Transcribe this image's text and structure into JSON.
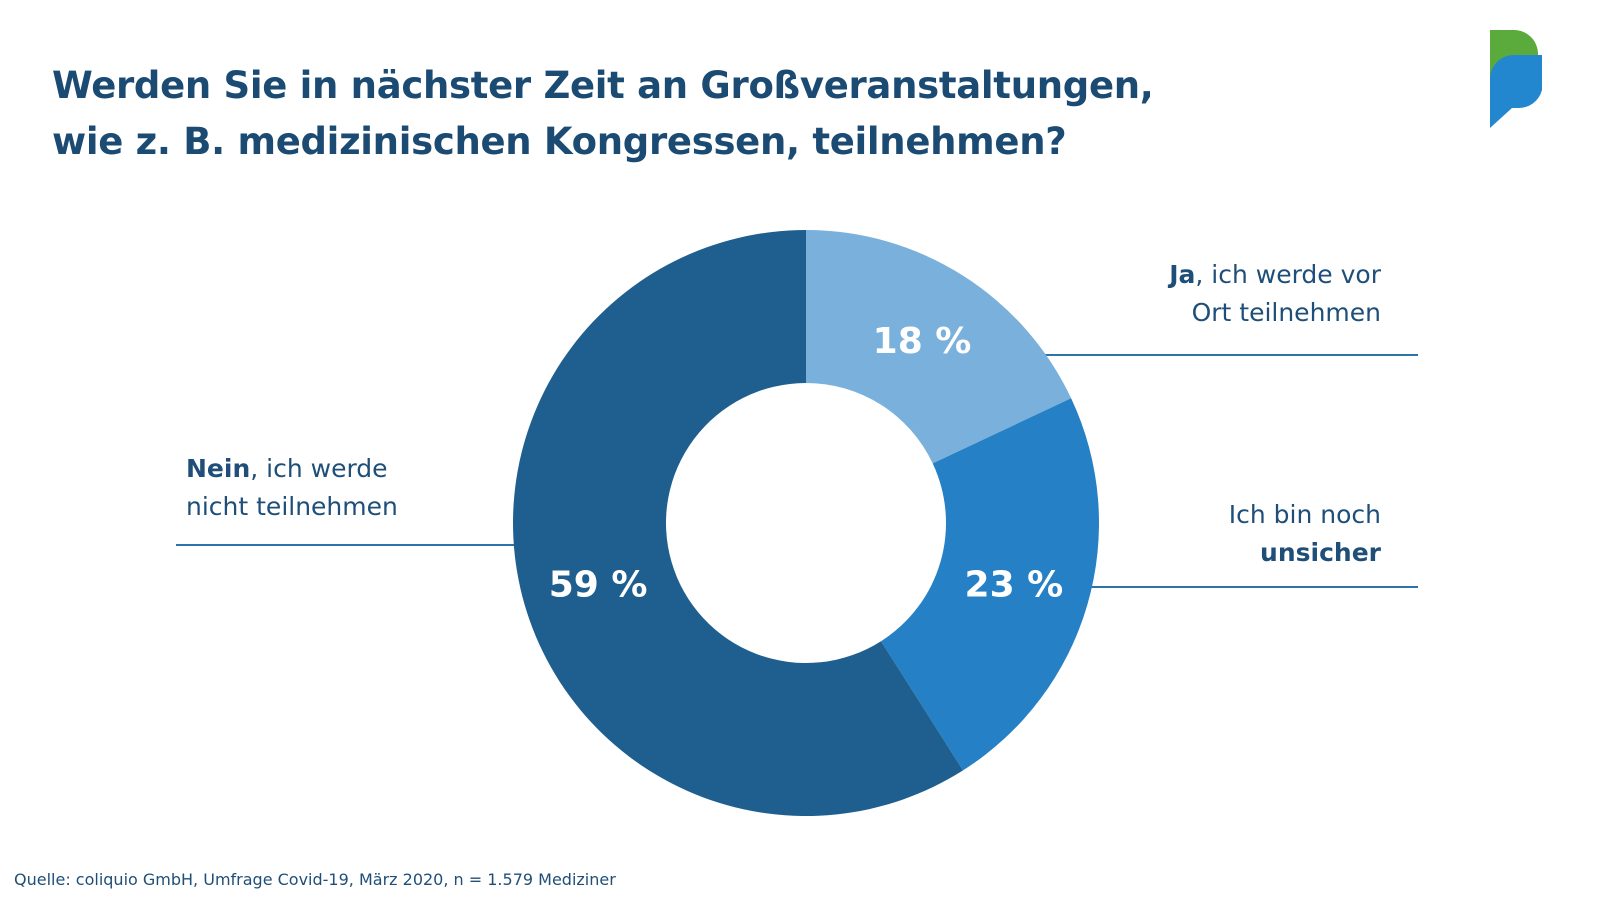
{
  "title_lines": [
    "Werden Sie in nächster Zeit an Großveranstaltungen,",
    "wie z. B. medizinischen Kongressen, teilnehmen?"
  ],
  "source": "Quelle: coliquio GmbH, Umfrage Covid-19, März 2020, n = 1.579 Mediziner",
  "colors": {
    "title": "#1b4b73",
    "ja": "#7ab1dc",
    "unsicher": "#2680c5",
    "nein": "#1f5f8f",
    "leader_line": "#2f74a8",
    "logo_green": "#5aab3b",
    "logo_blue": "#2387cf"
  },
  "logo": {
    "icon": "speech-bubbles-logo-icon"
  },
  "chart_data": {
    "type": "pie",
    "style": "donut",
    "start": "12 o'clock, clockwise",
    "slices": [
      {
        "key": "ja",
        "value": 18,
        "value_label": "18 %",
        "legend_bold": "Ja",
        "legend_line1_rest": ", ich werde vor",
        "legend_line2": "Ort teilnehmen"
      },
      {
        "key": "unsicher",
        "value": 23,
        "value_label": "23 %",
        "legend_line1": "Ich bin noch",
        "legend_bold": "unsicher"
      },
      {
        "key": "nein",
        "value": 59,
        "value_label": "59 %",
        "legend_bold": "Nein",
        "legend_line1_rest": ", ich werde",
        "legend_line2": "nicht teilnehmen"
      }
    ]
  }
}
